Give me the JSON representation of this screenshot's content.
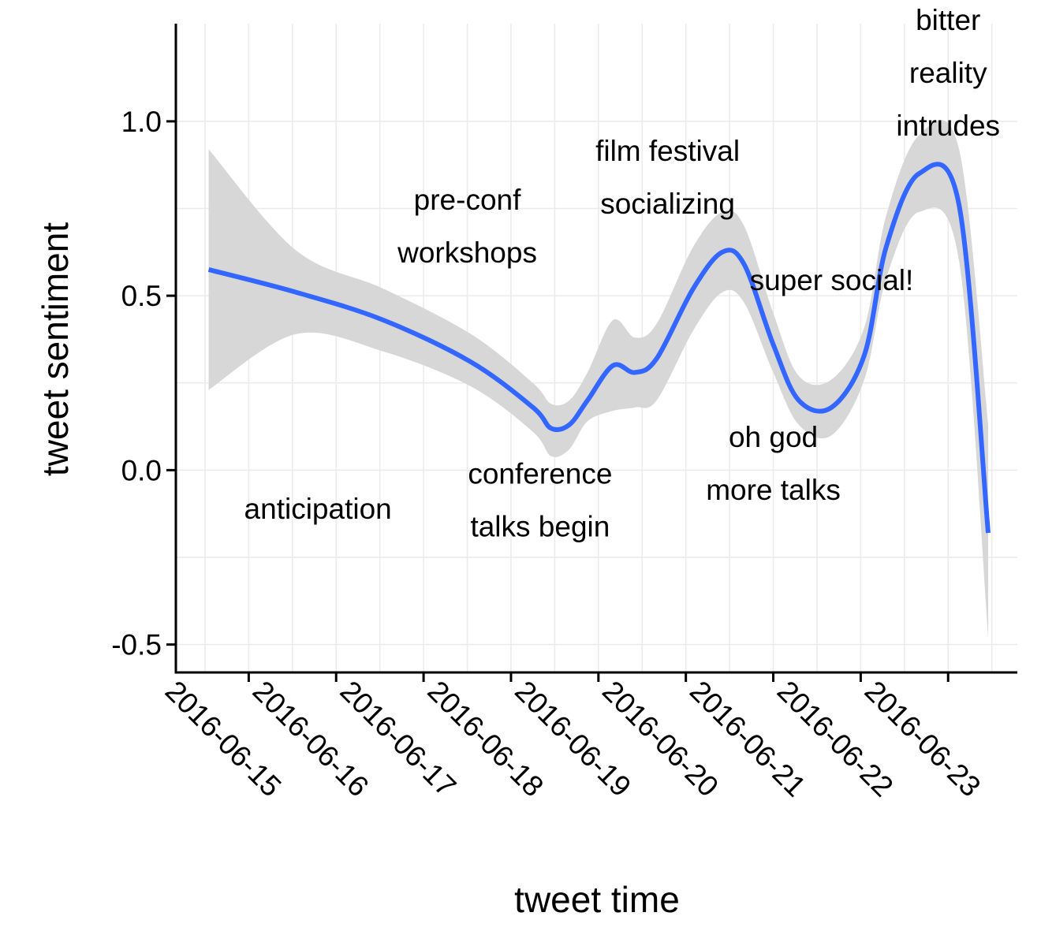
{
  "chart_data": {
    "type": "line",
    "xlabel": "tweet time",
    "ylabel": "tweet sentiment",
    "x_ticks": [
      "2016-06-15",
      "2016-06-16",
      "2016-06-17",
      "2016-06-18",
      "2016-06-19",
      "2016-06-20",
      "2016-06-21",
      "2016-06-22",
      "2016-06-23"
    ],
    "y_ticks": [
      "-0.5",
      "0.0",
      "0.5",
      "1.0"
    ],
    "xlim": [
      "2016-06-14 04:00",
      "2016-06-23 19:00"
    ],
    "ylim": [
      -0.58,
      1.28
    ],
    "grid": true,
    "legend": "none",
    "smooth_line_color": "#3366ff",
    "band_color": "#d7d7d7",
    "series": [
      {
        "x": [
          "2016-06-14 13:00",
          "2016-06-15 13:00",
          "2016-06-16 13:00",
          "2016-06-17 13:00",
          "2016-06-18 06:00",
          "2016-06-18 11:00",
          "2016-06-18 16:00",
          "2016-06-18 21:00",
          "2016-06-19 04:00",
          "2016-06-19 10:00",
          "2016-06-19 16:00",
          "2016-06-20 02:00",
          "2016-06-20 10:00",
          "2016-06-20 16:00",
          "2016-06-21 00:00",
          "2016-06-21 07:00",
          "2016-06-21 16:00",
          "2016-06-22 01:00",
          "2016-06-22 07:00",
          "2016-06-22 16:00",
          "2016-06-23 03:00",
          "2016-06-23 11:00"
        ],
        "y": [
          0.575,
          0.51,
          0.43,
          0.31,
          0.18,
          0.12,
          0.13,
          0.2,
          0.3,
          0.28,
          0.32,
          0.52,
          0.625,
          0.59,
          0.36,
          0.2,
          0.18,
          0.33,
          0.64,
          0.85,
          0.76,
          -0.18
        ],
        "lower": [
          0.23,
          0.39,
          0.34,
          0.24,
          0.11,
          0.04,
          0.06,
          0.14,
          0.17,
          0.18,
          0.2,
          0.4,
          0.51,
          0.48,
          0.28,
          0.13,
          0.1,
          0.26,
          0.55,
          0.74,
          0.6,
          -0.48
        ],
        "upper": [
          0.92,
          0.63,
          0.52,
          0.39,
          0.25,
          0.19,
          0.2,
          0.28,
          0.43,
          0.38,
          0.42,
          0.64,
          0.74,
          0.7,
          0.45,
          0.27,
          0.26,
          0.41,
          0.73,
          0.96,
          0.92,
          0.13
        ]
      }
    ],
    "annotations": [
      {
        "lines": [
          "anticipation"
        ],
        "x": "2016-06-15 19:00",
        "y": -0.11
      },
      {
        "lines": [
          "pre-conf",
          "workshops"
        ],
        "x": "2016-06-17 12:00",
        "y": 0.7
      },
      {
        "lines": [
          "conference",
          "talks begin"
        ],
        "x": "2016-06-18 08:00",
        "y": -0.085
      },
      {
        "lines": [
          "film festival",
          "socializing"
        ],
        "x": "2016-06-19 19:00",
        "y": 0.84
      },
      {
        "lines": [
          "super social!"
        ],
        "x": "2016-06-21 16:00",
        "y": 0.545
      },
      {
        "lines": [
          "oh god",
          "more talks"
        ],
        "x": "2016-06-21 00:00",
        "y": 0.02
      },
      {
        "lines": [
          "bitter",
          "reality",
          "intrudes"
        ],
        "x": "2016-06-23 00:00",
        "y": 1.14
      }
    ]
  }
}
